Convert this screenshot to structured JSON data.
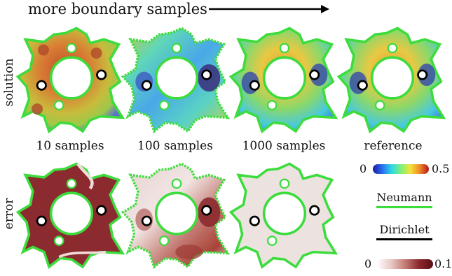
{
  "header": {
    "title": "more boundary samples"
  },
  "row_labels": {
    "top": "solution",
    "bottom": "error"
  },
  "columns": [
    {
      "label": "10 samples"
    },
    {
      "label": "100 samples"
    },
    {
      "label": "1000 samples"
    },
    {
      "label": "reference"
    }
  ],
  "colorbars": {
    "solution": {
      "min": "0",
      "max": "0.5"
    },
    "error": {
      "min": "0",
      "max": "0.1"
    }
  },
  "legend": {
    "neumann": {
      "label": "Neumann",
      "color": "#3ddc3d"
    },
    "dirichlet": {
      "label": "Dirichlet",
      "color": "#000000"
    }
  }
}
